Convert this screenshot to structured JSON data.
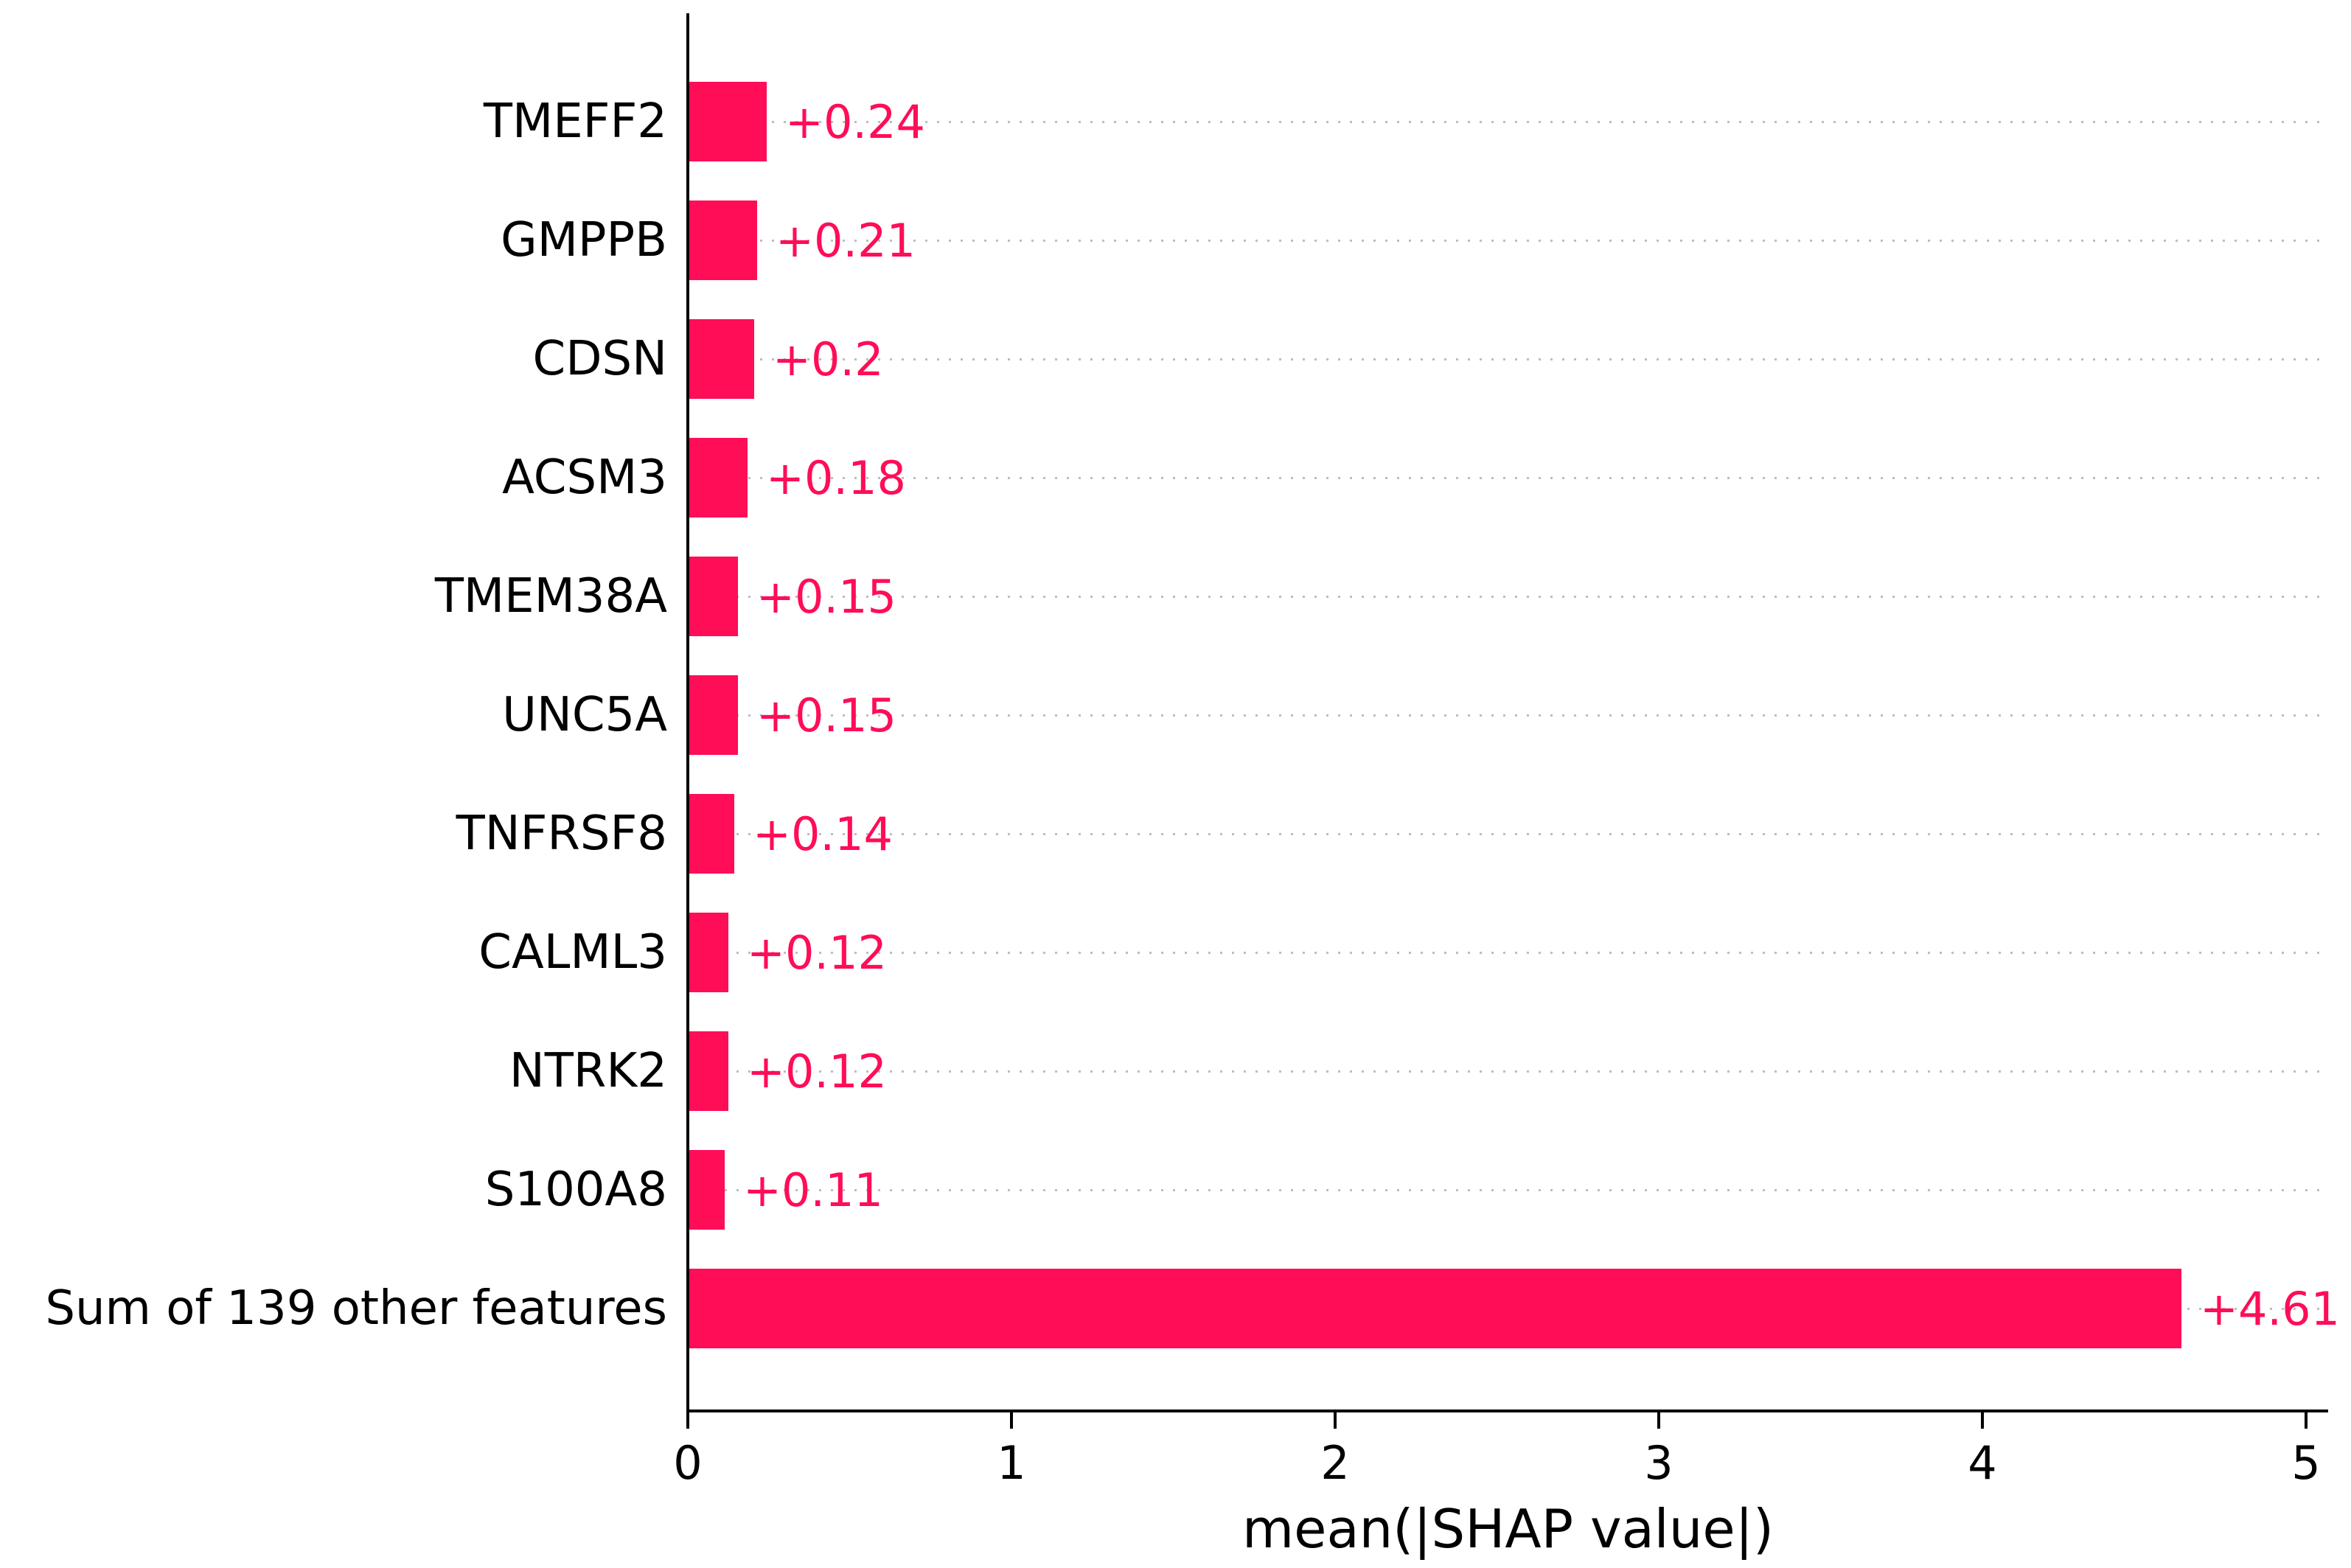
{
  "chart_data": {
    "type": "bar",
    "orientation": "horizontal",
    "title": "",
    "xlabel": "mean(|SHAP value|)",
    "ylabel": "",
    "categories": [
      "TMEFF2",
      "GMPPB",
      "CDSN",
      "ACSM3",
      "TMEM38A",
      "UNC5A",
      "TNFRSF8",
      "CALML3",
      "NTRK2",
      "S100A8",
      "Sum of 139 other features"
    ],
    "values": [
      0.24,
      0.21,
      0.2,
      0.18,
      0.15,
      0.15,
      0.14,
      0.12,
      0.12,
      0.11,
      4.61
    ],
    "value_labels": [
      "+0.24",
      "+0.21",
      "+0.2",
      "+0.18",
      "+0.15",
      "+0.15",
      "+0.14",
      "+0.12",
      "+0.12",
      "+0.11",
      "+4.61"
    ],
    "x_ticks": [
      "0",
      "1",
      "2",
      "3",
      "4",
      "5"
    ],
    "x_tick_values": [
      0,
      1,
      2,
      3,
      4,
      5
    ],
    "xlim": [
      0,
      5.07
    ],
    "grid": "horizontal-dotted",
    "legend": "none",
    "bar_color": "#ff0d57",
    "value_label_color": "#ff0d57",
    "grid_color": "#bdbdbd",
    "axis_color": "#000000"
  }
}
